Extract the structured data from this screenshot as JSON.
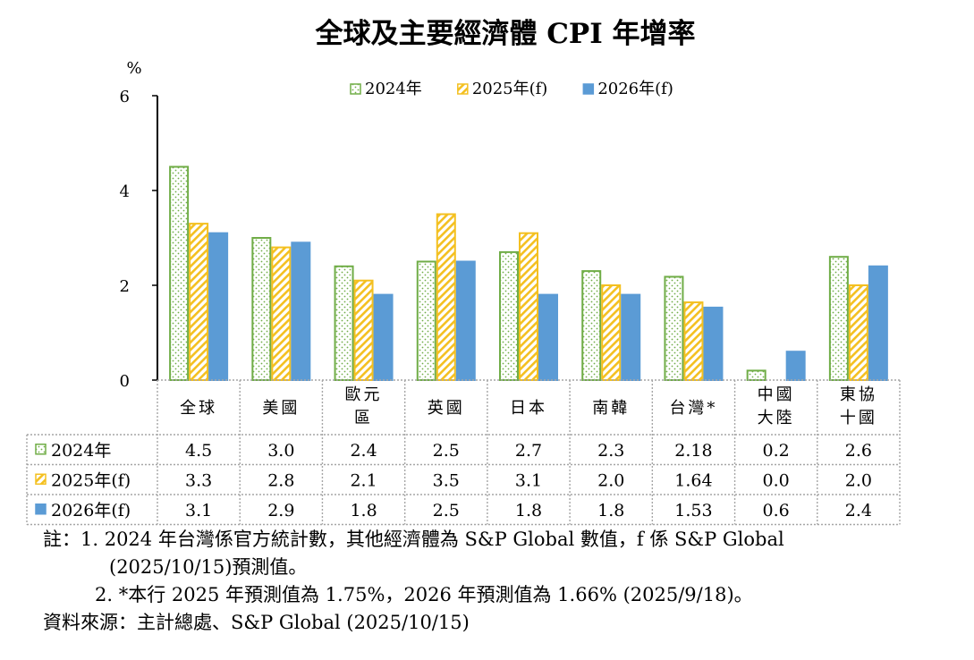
{
  "chart_data": {
    "type": "bar",
    "title": "全球及主要經濟體 CPI 年增率",
    "ylabel": "%",
    "ylim": [
      0,
      6
    ],
    "yticks": [
      0,
      2,
      4,
      6
    ],
    "legend_position": "top",
    "categories": [
      [
        "全球"
      ],
      [
        "美國"
      ],
      [
        "歐元",
        "區"
      ],
      [
        "英國"
      ],
      [
        "日本"
      ],
      [
        "南韓"
      ],
      [
        "台灣*"
      ],
      [
        "中國",
        "大陸"
      ],
      [
        "東協",
        "十國"
      ]
    ],
    "series": [
      {
        "name": "2024年",
        "pattern": "dots",
        "color": "#70ad47",
        "values": [
          4.5,
          3.0,
          2.4,
          2.5,
          2.7,
          2.3,
          2.18,
          0.2,
          2.6
        ],
        "labels": [
          "4.5",
          "3.0",
          "2.4",
          "2.5",
          "2.7",
          "2.3",
          "2.18",
          "0.2",
          "2.6"
        ]
      },
      {
        "name": "2025年(f)",
        "pattern": "stripes",
        "color": "#f4c020",
        "values": [
          3.3,
          2.8,
          2.1,
          3.5,
          3.1,
          2.0,
          1.64,
          0.0,
          2.0
        ],
        "labels": [
          "3.3",
          "2.8",
          "2.1",
          "3.5",
          "3.1",
          "2.0",
          "1.64",
          "0.0",
          "2.0"
        ]
      },
      {
        "name": "2026年(f)",
        "pattern": "solid",
        "color": "#5b9bd5",
        "values": [
          3.1,
          2.9,
          1.8,
          2.5,
          1.8,
          1.8,
          1.53,
          0.6,
          2.4
        ],
        "labels": [
          "3.1",
          "2.9",
          "1.8",
          "2.5",
          "1.8",
          "1.8",
          "1.53",
          "0.6",
          "2.4"
        ]
      }
    ]
  },
  "notes": {
    "line1": "註：1. 2024 年台灣係官方統計數，其他經濟體為 S&P Global 數值，f 係 S&P Global",
    "line2": "(2025/10/15)預測值。",
    "line3": "2. *本行 2025 年預測值為 1.75%，2026 年預測值為 1.66% (2025/9/18)。",
    "line4": "資料來源：主計總處、S&P Global (2025/10/15)"
  }
}
